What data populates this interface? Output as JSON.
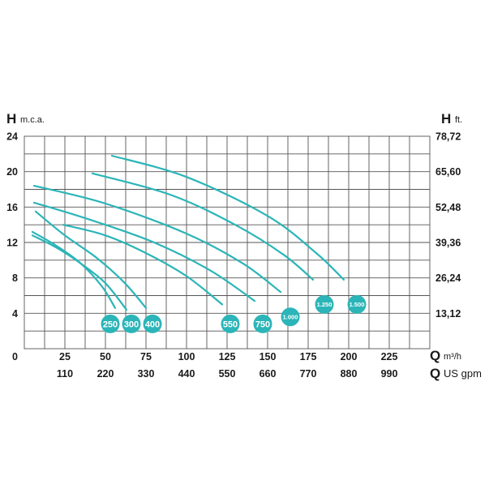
{
  "chart_data": {
    "type": "line",
    "title": "",
    "y_axis_left": {
      "letter": "H",
      "unit": "m.c.a.",
      "range": [
        0,
        24
      ],
      "ticks": [
        "0",
        "4",
        "8",
        "12",
        "16",
        "20",
        "24"
      ]
    },
    "y_axis_right": {
      "letter": "H",
      "unit": "ft.",
      "ticks": [
        "13,12",
        "26,24",
        "39,36",
        "52,48",
        "65,60",
        "78,72"
      ]
    },
    "x_axis_primary": {
      "letter": "Q",
      "unit": "m³/h",
      "range": [
        0,
        250
      ],
      "ticks": [
        "25",
        "50",
        "75",
        "100",
        "125",
        "150",
        "175",
        "200",
        "225"
      ]
    },
    "x_axis_secondary": {
      "letter": "Q",
      "unit": "US gpm",
      "ticks": [
        "110",
        "220",
        "330",
        "440",
        "550",
        "660",
        "770",
        "880",
        "990"
      ]
    },
    "grid": true,
    "line_color": "#2bb5b8",
    "badge_color": "#2bb5b8",
    "series": [
      {
        "name": "250",
        "badge_x": 53,
        "badge_y": 2.8,
        "points": [
          [
            5,
            13.2
          ],
          [
            20,
            11.6
          ],
          [
            35,
            9.6
          ],
          [
            48,
            7.0
          ],
          [
            56,
            4.6
          ]
        ]
      },
      {
        "name": "300",
        "badge_x": 66,
        "badge_y": 2.8,
        "points": [
          [
            5,
            12.8
          ],
          [
            20,
            11.4
          ],
          [
            35,
            9.6
          ],
          [
            50,
            7.4
          ],
          [
            63,
            4.4
          ]
        ]
      },
      {
        "name": "400",
        "badge_x": 79,
        "badge_y": 2.8,
        "points": [
          [
            7,
            15.5
          ],
          [
            25,
            12.8
          ],
          [
            45,
            10.2
          ],
          [
            62,
            7.4
          ],
          [
            75,
            4.6
          ]
        ]
      },
      {
        "name": "550",
        "badge_x": 127,
        "badge_y": 2.8,
        "points": [
          [
            24,
            14.0
          ],
          [
            50,
            12.8
          ],
          [
            75,
            10.8
          ],
          [
            100,
            8.2
          ],
          [
            122,
            5.0
          ]
        ]
      },
      {
        "name": "750",
        "badge_x": 147,
        "badge_y": 2.8,
        "points": [
          [
            6,
            16.5
          ],
          [
            40,
            14.6
          ],
          [
            80,
            12.0
          ],
          [
            115,
            8.8
          ],
          [
            142,
            5.4
          ]
        ]
      },
      {
        "name": "1.000",
        "badge_x": 164,
        "badge_y": 3.6,
        "points": [
          [
            6,
            18.4
          ],
          [
            50,
            16.4
          ],
          [
            100,
            13.0
          ],
          [
            135,
            9.6
          ],
          [
            158,
            6.4
          ]
        ]
      },
      {
        "name": "1.250",
        "badge_x": 185,
        "badge_y": 5.0,
        "points": [
          [
            42,
            19.8
          ],
          [
            90,
            17.4
          ],
          [
            130,
            14.0
          ],
          [
            160,
            10.6
          ],
          [
            178,
            7.8
          ]
        ]
      },
      {
        "name": "1.500",
        "badge_x": 205,
        "badge_y": 5.0,
        "points": [
          [
            54,
            21.8
          ],
          [
            100,
            19.4
          ],
          [
            150,
            15.0
          ],
          [
            180,
            10.8
          ],
          [
            197,
            7.8
          ]
        ]
      }
    ]
  }
}
